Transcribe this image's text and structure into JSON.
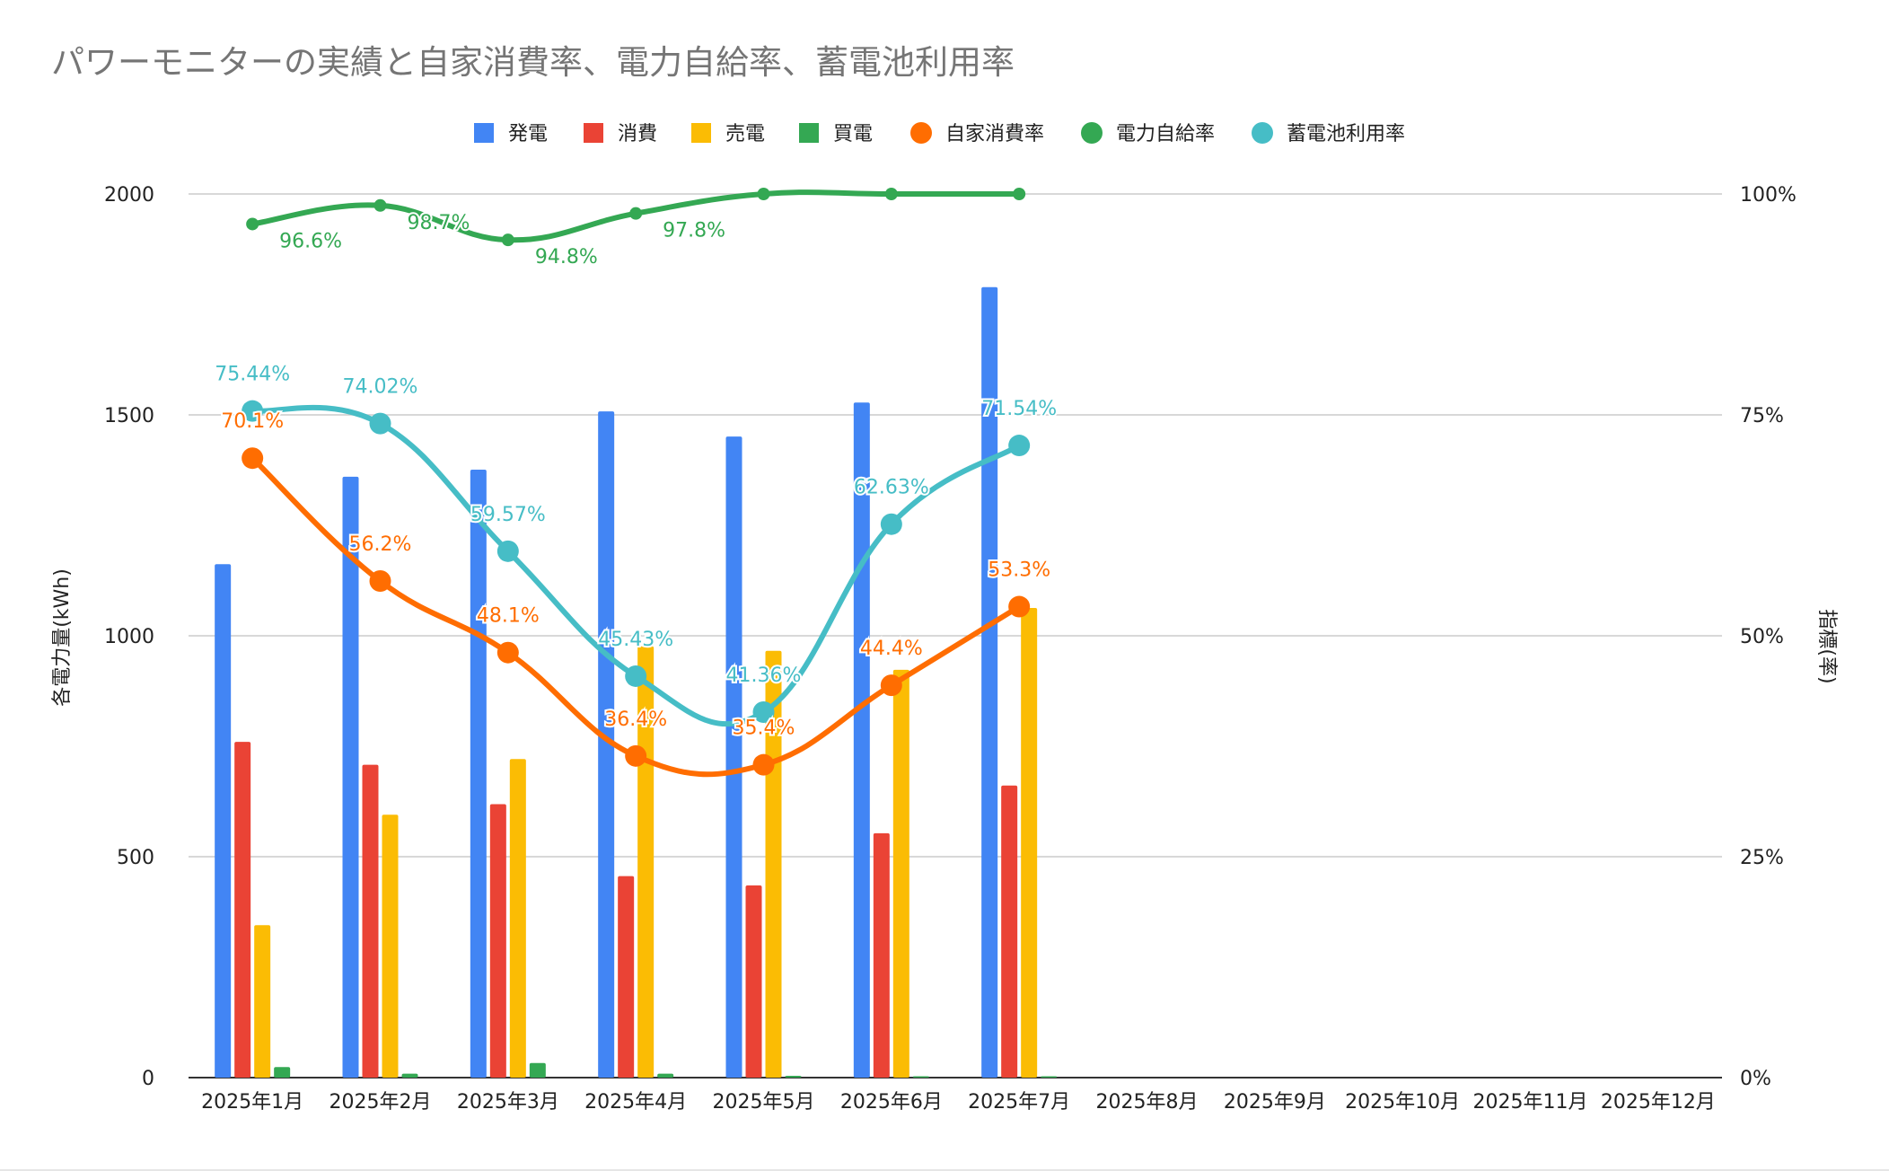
{
  "chart_data": {
    "type": "bar",
    "title": "パワーモニターの実績と自家消費率、電力自給率、蓄電池利用率",
    "ylabel": "各電力量(kWh)",
    "y2label": "指標(率)",
    "ylim": [
      0,
      2000
    ],
    "y2lim": [
      0,
      1
    ],
    "yticks": [
      "0",
      "500",
      "1000",
      "1500",
      "2000"
    ],
    "y2ticks": [
      "0%",
      "25%",
      "50%",
      "75%",
      "100%"
    ],
    "grid": true,
    "legend_position": "top",
    "categories": [
      "2025年1月",
      "2025年2月",
      "2025年3月",
      "2025年4月",
      "2025年5月",
      "2025年6月",
      "2025年7月",
      "2025年8月",
      "2025年9月",
      "2025年10月",
      "2025年11月",
      "2025年12月"
    ],
    "bar_series": [
      {
        "name": "発電",
        "color": "#4285f4",
        "values": [
          1162,
          1360,
          1376,
          1508,
          1451,
          1528,
          1789,
          null,
          null,
          null,
          null,
          null
        ]
      },
      {
        "name": "消費",
        "color": "#ea4335",
        "values": [
          760,
          708,
          619,
          456,
          435,
          553,
          661,
          null,
          null,
          null,
          null,
          null
        ]
      },
      {
        "name": "売電",
        "color": "#fbbc04",
        "values": [
          345,
          595,
          721,
          976,
          966,
          923,
          1063,
          null,
          null,
          null,
          null,
          null
        ]
      },
      {
        "name": "買電",
        "color": "#34a853",
        "values": [
          24,
          9,
          33,
          9,
          4,
          3,
          3,
          null,
          null,
          null,
          null,
          null
        ]
      }
    ],
    "line_series": [
      {
        "name": "自家消費率",
        "color": "#ff6d01",
        "values": [
          0.701,
          0.562,
          0.481,
          0.364,
          0.354,
          0.444,
          0.533
        ],
        "labels": [
          "70.1%",
          "56.2%",
          "48.1%",
          "36.4%",
          "35.4%",
          "44.4%",
          "53.3%"
        ]
      },
      {
        "name": "電力自給率",
        "color": "#34a853",
        "values": [
          0.966,
          0.987,
          0.948,
          0.978,
          1.0,
          1.0,
          1.0
        ],
        "labels": [
          "96.6%",
          "98.7%",
          "94.8%",
          "97.8%",
          "",
          "",
          ""
        ]
      },
      {
        "name": "蓄電池利用率",
        "color": "#46bdc6",
        "values": [
          0.7544,
          0.7402,
          0.5957,
          0.4543,
          0.4136,
          0.6263,
          0.7154
        ],
        "labels": [
          "75.44%",
          "74.02%",
          "59.57%",
          "45.43%",
          "41.36%",
          "62.63%",
          "71.54%"
        ]
      }
    ]
  }
}
